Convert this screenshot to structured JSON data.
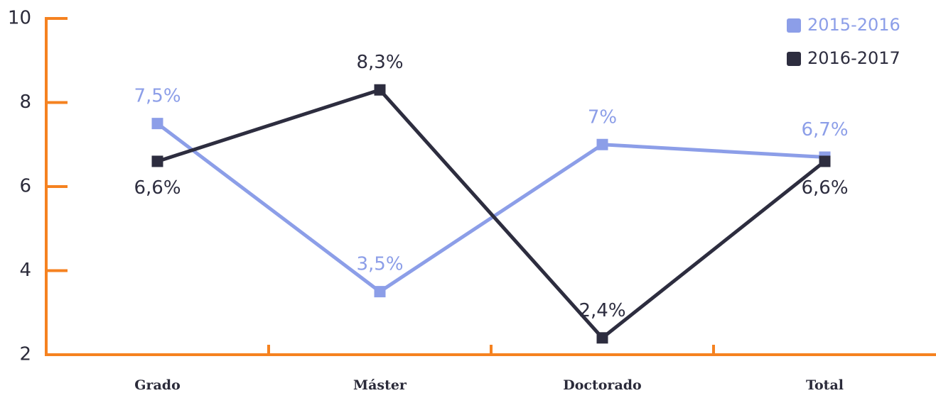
{
  "chart_data": {
    "type": "line",
    "categories": [
      "Grado",
      "Máster",
      "Doctorado",
      "Total"
    ],
    "series": [
      {
        "name": "2015-2016",
        "color": "#8c9ee8",
        "values": [
          7.5,
          3.5,
          7,
          6.7
        ],
        "value_labels": [
          "7,5%",
          "3,5%",
          "7%",
          "6,7%"
        ]
      },
      {
        "name": "2016-2017",
        "color": "#2d2d3f",
        "values": [
          6.6,
          8.3,
          2.4,
          6.6
        ],
        "value_labels": [
          "6,6%",
          "8,3%",
          "2,4%",
          "6,6%"
        ]
      }
    ],
    "ylim": [
      2,
      10
    ],
    "yticks": [
      2,
      4,
      6,
      8,
      10
    ],
    "axis_color": "#f58220",
    "legend": "upper right"
  }
}
